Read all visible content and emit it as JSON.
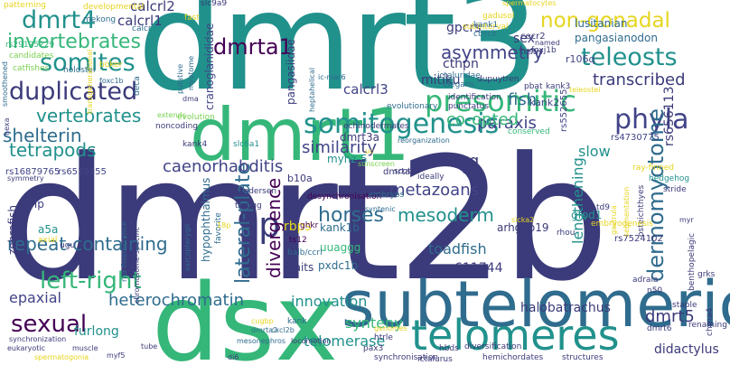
{
  "cloud": {
    "colors": {
      "navy": "#3b3a7a",
      "darkblue": "#414487",
      "blue": "#2f6c8e",
      "teal": "#21918c",
      "green": "#35b779",
      "lime": "#7ad151",
      "yellow": "#e6d51f",
      "purple": "#440154"
    },
    "words": [
      {
        "text": "dmrt2b"
      },
      {
        "text": "dmrt3"
      },
      {
        "text": "dsx"
      },
      {
        "text": "subtelomeric"
      },
      {
        "text": "telomeres"
      },
      {
        "text": "dmrt1"
      },
      {
        "text": "presomitic"
      },
      {
        "text": "somitogenesis"
      },
      {
        "text": "phyla"
      },
      {
        "text": "dmrt4"
      },
      {
        "text": "somites"
      },
      {
        "text": "duplicated"
      },
      {
        "text": "teleosts"
      },
      {
        "text": "non-gonadal"
      },
      {
        "text": "9p"
      },
      {
        "text": "left-right"
      },
      {
        "text": "sexual"
      },
      {
        "text": "dmrta1"
      },
      {
        "text": "invertebrates"
      },
      {
        "text": "dermomyotome"
      },
      {
        "text": "asymmetry"
      },
      {
        "text": "lateral-plate"
      },
      {
        "text": "shelterin"
      },
      {
        "text": "divergence"
      },
      {
        "text": "repeat-containing"
      },
      {
        "text": "heterochromatin"
      },
      {
        "text": "caenorhabditis"
      },
      {
        "text": "metazoans"
      },
      {
        "text": "horses"
      },
      {
        "text": "mesoderm"
      },
      {
        "text": "vertebrates"
      },
      {
        "text": "tetrapods"
      },
      {
        "text": "similarity"
      },
      {
        "text": "paraxis"
      },
      {
        "text": "fish"
      },
      {
        "text": "transcribed"
      },
      {
        "text": "paralog"
      },
      {
        "text": "lengthening"
      },
      {
        "text": "innovation"
      },
      {
        "text": "synteny"
      },
      {
        "text": "telomerase"
      },
      {
        "text": "furlong"
      },
      {
        "text": "epaxial"
      },
      {
        "text": "dmrt5"
      },
      {
        "text": "didactylus"
      },
      {
        "text": "toadfish"
      },
      {
        "text": "halobatrachus"
      },
      {
        "text": "calcrl1"
      },
      {
        "text": "calcrl2"
      },
      {
        "text": "calcrl3"
      },
      {
        "text": "co-opted"
      },
      {
        "text": "mitiku"
      },
      {
        "text": "cthpn"
      },
      {
        "text": "gpcrs"
      },
      {
        "text": "sex"
      },
      {
        "text": "rs656113"
      },
      {
        "text": "slow"
      },
      {
        "text": "lusitanian"
      },
      {
        "text": "pangasianodon"
      },
      {
        "text": "pangasiidae"
      },
      {
        "text": "cranoglanididae"
      },
      {
        "text": "zebrafish"
      },
      {
        "text": "dmrt3a"
      },
      {
        "text": "myhz-5"
      },
      {
        "text": "b10a"
      },
      {
        "text": "rbps"
      },
      {
        "text": "kank1b"
      },
      {
        "text": "uuaggg"
      },
      {
        "text": "gaits"
      },
      {
        "text": "pxdc1b"
      },
      {
        "text": "arhgap19"
      },
      {
        "text": "gfod1"
      },
      {
        "text": "rs611744"
      },
      {
        "text": "rs7524102"
      },
      {
        "text": "idrip"
      },
      {
        "text": "a5a"
      },
      {
        "text": "hypophthalmus"
      },
      {
        "text": "kank2"
      },
      {
        "text": "r106q"
      },
      {
        "text": "dmrta"
      },
      {
        "text": "ttaggg"
      },
      {
        "text": "rs552655"
      },
      {
        "text": "rs4730775"
      },
      {
        "text": "rs16879765"
      },
      {
        "text": "rs6519955"
      },
      {
        "text": "rs29125229"
      },
      {
        "text": "patterning"
      },
      {
        "text": "developmental"
      },
      {
        "text": "mekong"
      },
      {
        "text": "candidates"
      },
      {
        "text": "catfishes"
      },
      {
        "text": "holostei"
      },
      {
        "text": "smoothened"
      },
      {
        "text": "boker"
      },
      {
        "text": "foxc1b"
      },
      {
        "text": "myotome"
      },
      {
        "text": "putative"
      },
      {
        "text": "dma"
      },
      {
        "text": "deca"
      },
      {
        "text": "evolutionary"
      },
      {
        "text": "conserved"
      },
      {
        "text": "evolution"
      },
      {
        "text": "noncoding"
      },
      {
        "text": "extends"
      },
      {
        "text": "andersen"
      },
      {
        "text": "kank4"
      },
      {
        "text": "slc6a1"
      },
      {
        "text": "echinodermates"
      },
      {
        "text": "reorganization"
      },
      {
        "text": "sunscreen"
      },
      {
        "text": "scott"
      },
      {
        "text": "ideally"
      },
      {
        "text": "a11a"
      },
      {
        "text": "desynchronisation"
      },
      {
        "text": "embryos"
      },
      {
        "text": "favorite"
      },
      {
        "text": "sarcopterygii"
      },
      {
        "text": "ghkr"
      },
      {
        "text": "ts12"
      },
      {
        "text": "syntenic"
      },
      {
        "text": "balb/ccrl"
      },
      {
        "text": "subinterval"
      },
      {
        "text": "teleostei"
      },
      {
        "text": "ictaluridae"
      },
      {
        "text": "elegans"
      },
      {
        "text": "dupuytren"
      },
      {
        "text": "identification"
      },
      {
        "text": "punctatus"
      },
      {
        "text": "pbat"
      },
      {
        "text": "kank3"
      },
      {
        "text": "testis"
      },
      {
        "text": "cecr2"
      },
      {
        "text": "named"
      },
      {
        "text": "foxj1b"
      },
      {
        "text": "slc9a9"
      },
      {
        "text": "fast"
      },
      {
        "text": "calcr"
      },
      {
        "text": "gadusol"
      },
      {
        "text": "kank1"
      },
      {
        "text": "ctr/clr"
      },
      {
        "text": "spermatocytes"
      },
      {
        "text": "ic-mar6"
      },
      {
        "text": "heptahelical"
      },
      {
        "text": "hedgehog"
      },
      {
        "text": "stride"
      },
      {
        "text": "osteichthyes"
      },
      {
        "text": "myr"
      },
      {
        "text": "benthopelagic"
      },
      {
        "text": "ray-finned"
      },
      {
        "text": "gastrula"
      },
      {
        "text": "segmentation"
      },
      {
        "text": "embryogenesis"
      },
      {
        "text": "rhou"
      },
      {
        "text": "td9"
      },
      {
        "text": "sicka2"
      },
      {
        "text": "adrala"
      },
      {
        "text": "chrna4"
      },
      {
        "text": "grks"
      },
      {
        "text": "n50"
      },
      {
        "text": "staple"
      },
      {
        "text": "dmrt6"
      },
      {
        "text": "renaming"
      },
      {
        "text": "structures"
      },
      {
        "text": "hemichordates"
      },
      {
        "text": "ictalurus"
      },
      {
        "text": "diversification"
      },
      {
        "text": "hbds"
      },
      {
        "text": "htrle"
      },
      {
        "text": "pax3"
      },
      {
        "text": "genomes"
      },
      {
        "text": "synchronisation"
      },
      {
        "text": "locomotion"
      },
      {
        "text": "kank"
      },
      {
        "text": "cxcl2b"
      },
      {
        "text": "cugbp"
      },
      {
        "text": "dmrta2"
      },
      {
        "text": "mesonephros"
      },
      {
        "text": "di6"
      },
      {
        "text": "rna-fluorescence"
      },
      {
        "text": "chromosome-specific"
      },
      {
        "text": "tube"
      },
      {
        "text": "muscle"
      },
      {
        "text": "myf5"
      },
      {
        "text": "spermatogonia"
      },
      {
        "text": "eukaryotic"
      },
      {
        "text": "synchronization"
      },
      {
        "text": "ugu"
      },
      {
        "text": "axial"
      },
      {
        "text": "symmetry"
      },
      {
        "text": "18p"
      },
      {
        "text": "hexa"
      },
      {
        "text": "transgenerational"
      },
      {
        "text": "uc"
      }
    ]
  }
}
